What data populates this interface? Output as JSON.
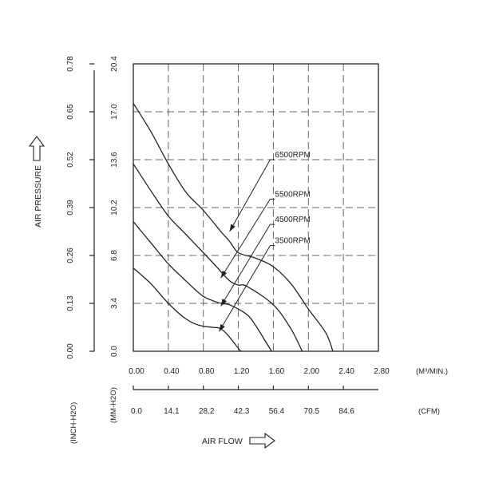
{
  "chart_data": {
    "type": "line",
    "xlabel": "AIR FLOW",
    "ylabel": "AIR PRESSURE",
    "x_axes": {
      "m3_per_min": {
        "unit": "(M³/MIN.)",
        "ticks": [
          "0.00",
          "0.40",
          "0.80",
          "1.20",
          "1.60",
          "2.00",
          "2.40",
          "2.80"
        ]
      },
      "cfm": {
        "unit": "(CFM)",
        "ticks": [
          "0.0",
          "14.1",
          "28.2",
          "42.3",
          "56.4",
          "70.5",
          "84.6"
        ]
      }
    },
    "y_axes": {
      "mm_h2o": {
        "unit": "(MM-H2O)",
        "ticks": [
          "0.0",
          "3.4",
          "6.8",
          "10.2",
          "13.6",
          "17.0",
          "20.4"
        ]
      },
      "inch_h2o": {
        "unit": "(INCH-H2O)",
        "ticks": [
          "0.00",
          "0.13",
          "0.26",
          "0.39",
          "0.52",
          "0.65",
          "0.78"
        ]
      }
    },
    "xlim": [
      0,
      2.8
    ],
    "ylim": [
      0,
      20.4
    ],
    "grid": true,
    "series": [
      {
        "name": "6500RPM",
        "points": [
          [
            0,
            17.6
          ],
          [
            0.2,
            15.6
          ],
          [
            0.4,
            13.3
          ],
          [
            0.6,
            11.3
          ],
          [
            0.8,
            10.0
          ],
          [
            1.0,
            8.5
          ],
          [
            1.1,
            7.8
          ],
          [
            1.2,
            7.0
          ],
          [
            1.4,
            6.6
          ],
          [
            1.6,
            6.0
          ],
          [
            1.8,
            4.8
          ],
          [
            2.0,
            3.0
          ],
          [
            2.2,
            1.3
          ],
          [
            2.28,
            0
          ]
        ],
        "label_at": [
          1.6,
          13.6
        ],
        "pointer_to": [
          1.1,
          8.5
        ]
      },
      {
        "name": "5500RPM",
        "points": [
          [
            0,
            13.3
          ],
          [
            0.2,
            11.4
          ],
          [
            0.4,
            9.6
          ],
          [
            0.6,
            8.3
          ],
          [
            0.8,
            7.0
          ],
          [
            0.95,
            6.0
          ],
          [
            1.1,
            5.0
          ],
          [
            1.2,
            4.7
          ],
          [
            1.3,
            4.6
          ],
          [
            1.6,
            3.3
          ],
          [
            1.8,
            1.6
          ],
          [
            1.93,
            0
          ]
        ],
        "label_at": [
          1.6,
          10.8
        ],
        "pointer_to": [
          1.0,
          5.2
        ]
      },
      {
        "name": "4500RPM",
        "points": [
          [
            0,
            9.2
          ],
          [
            0.2,
            7.7
          ],
          [
            0.4,
            6.2
          ],
          [
            0.6,
            5.0
          ],
          [
            0.8,
            3.9
          ],
          [
            1.0,
            3.4
          ],
          [
            1.1,
            3.3
          ],
          [
            1.3,
            2.6
          ],
          [
            1.4,
            1.8
          ],
          [
            1.5,
            0.8
          ],
          [
            1.58,
            0
          ]
        ],
        "label_at": [
          1.6,
          9.0
        ],
        "pointer_to": [
          1.0,
          3.2
        ]
      },
      {
        "name": "3500RPM",
        "points": [
          [
            0,
            5.9
          ],
          [
            0.2,
            4.8
          ],
          [
            0.4,
            3.4
          ],
          [
            0.6,
            2.3
          ],
          [
            0.75,
            1.85
          ],
          [
            0.9,
            1.7
          ],
          [
            1.0,
            1.6
          ],
          [
            1.1,
            1.0
          ],
          [
            1.2,
            0.2
          ],
          [
            1.23,
            0
          ]
        ],
        "label_at": [
          1.6,
          7.5
        ],
        "pointer_to": [
          0.98,
          1.4
        ]
      }
    ]
  },
  "icons": {
    "y_direction": "up-arrow-icon",
    "x_direction": "right-arrow-icon"
  }
}
